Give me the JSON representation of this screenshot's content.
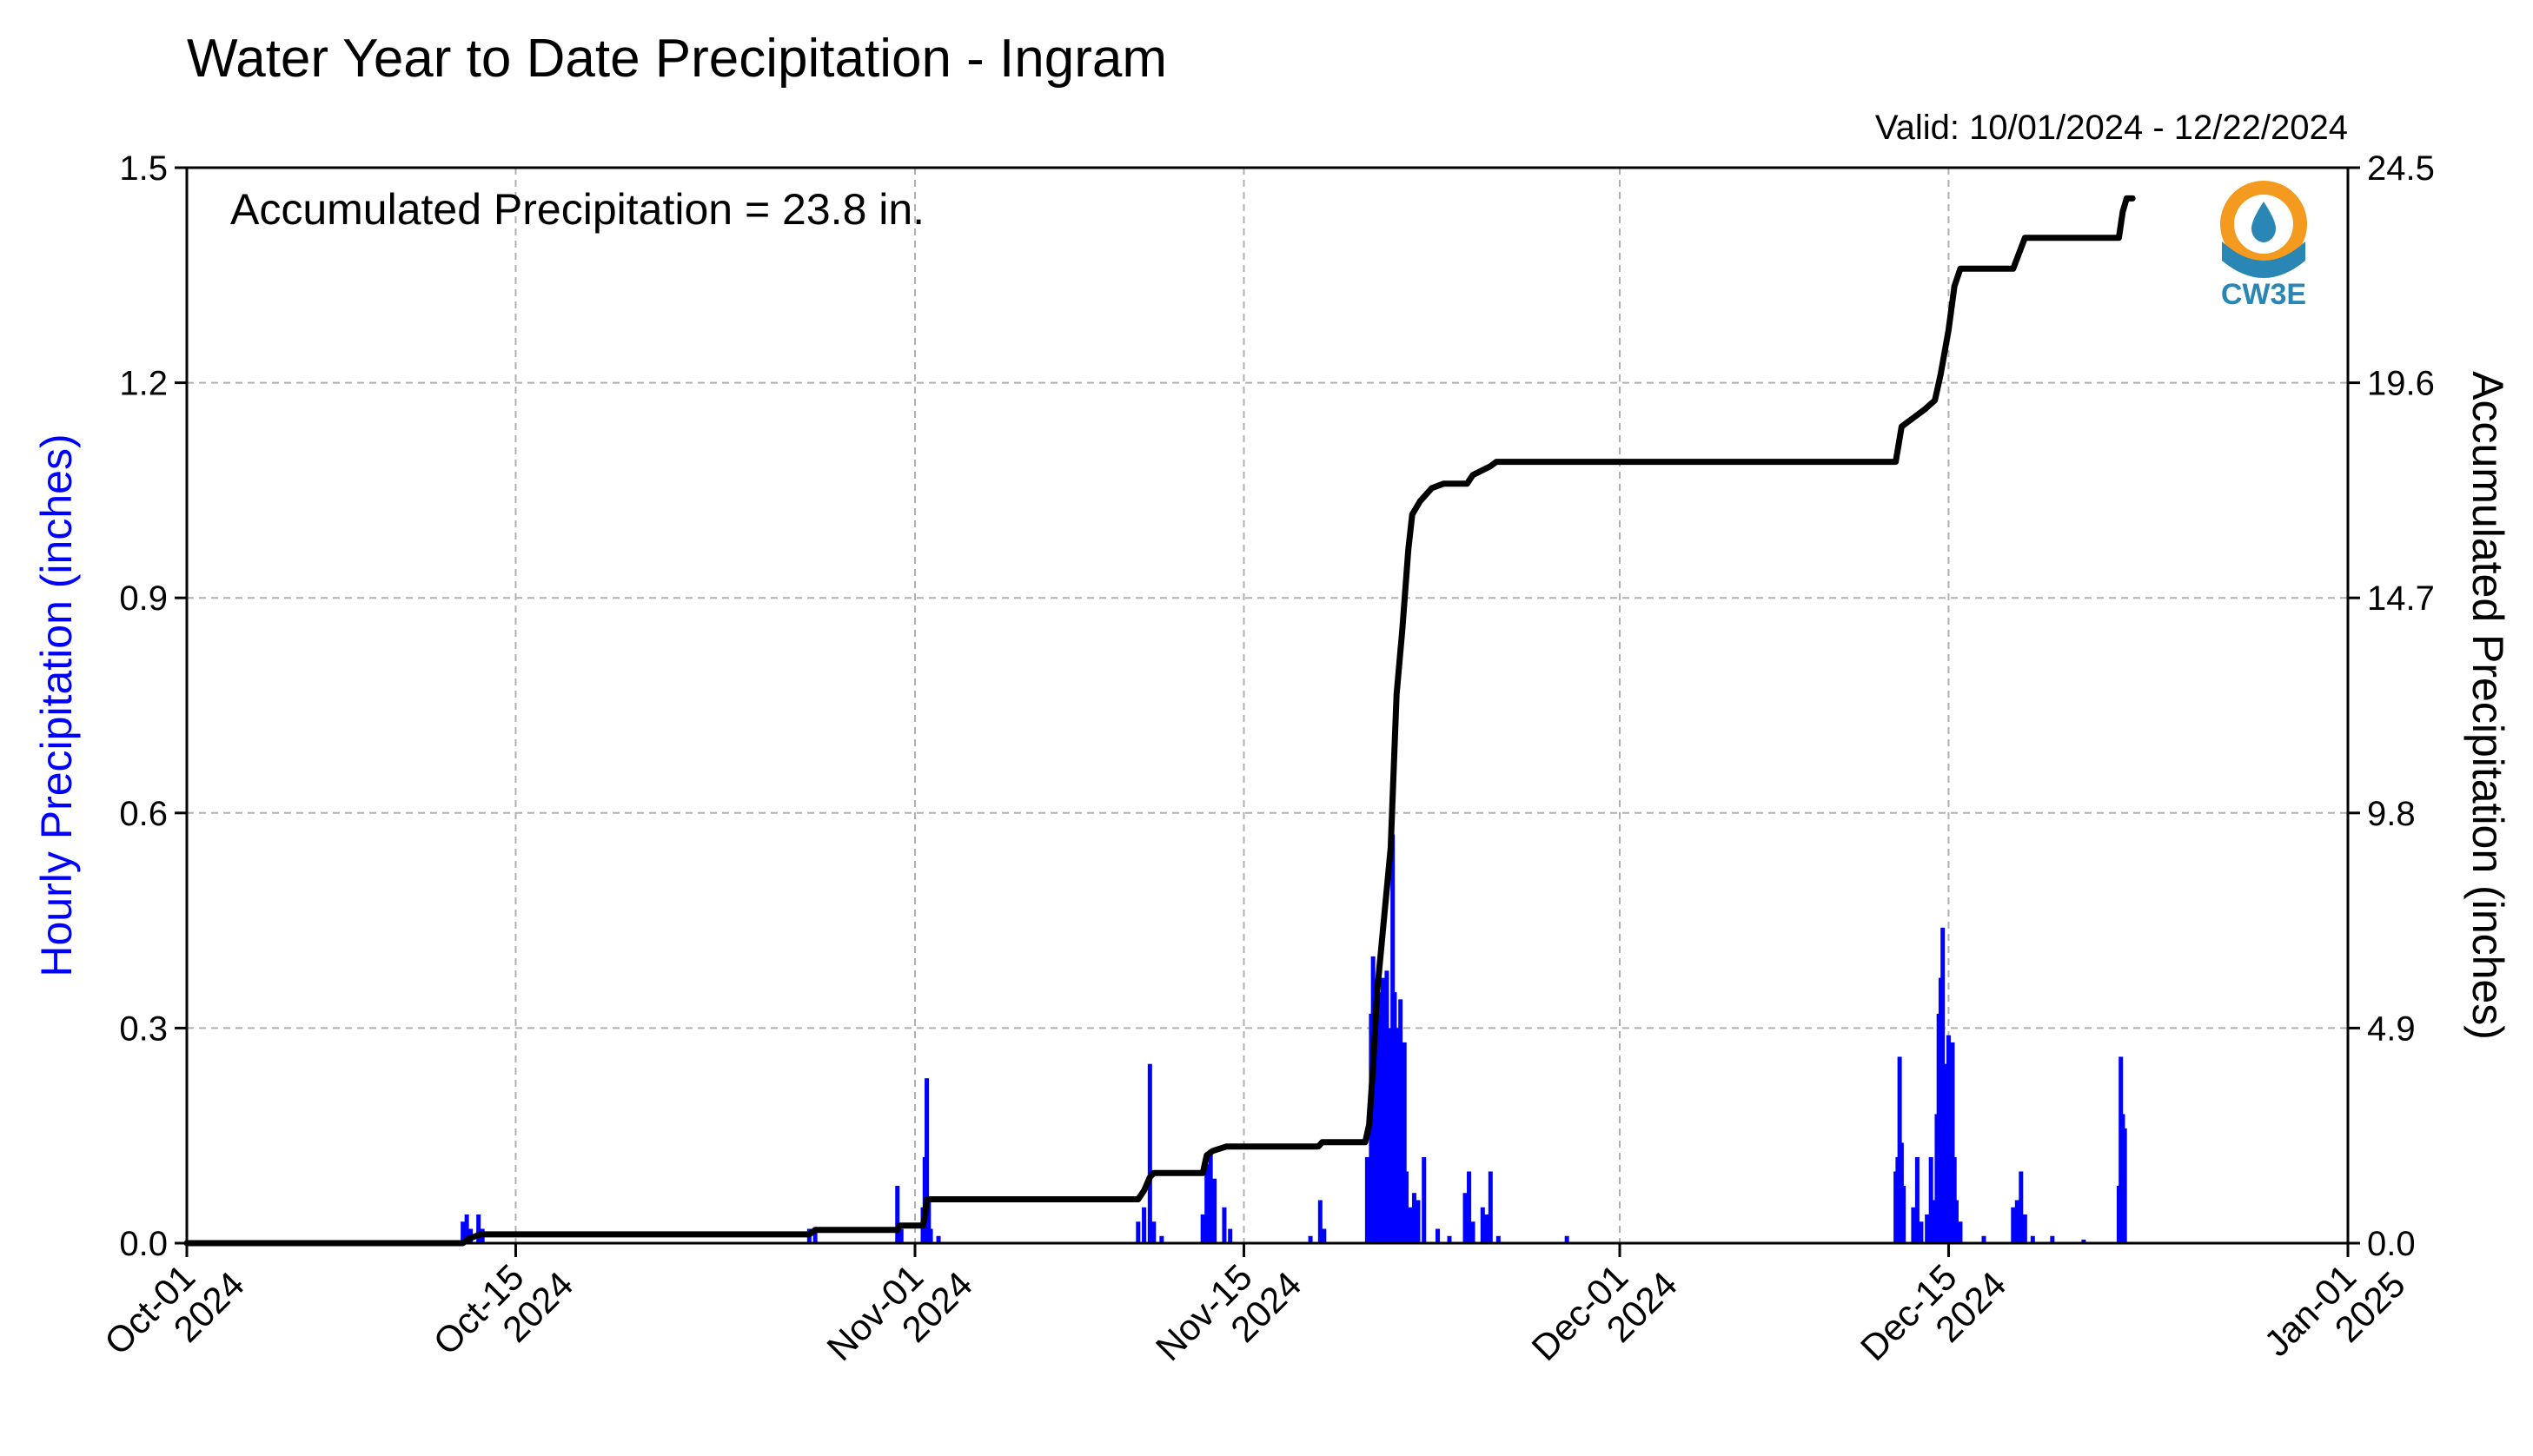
{
  "chart_data": {
    "type": "bar+line",
    "title": "Water Year to Date Precipitation - Ingram",
    "valid_text": "Valid: 10/01/2024 - 12/22/2024",
    "annotation": "Accumulated Precipitation = 23.8 in.",
    "ylabel_left": "Hourly Precipitation (inches)",
    "ylabel_right": "Accumulated Precipitation (inches)",
    "logo_text": "CW3E",
    "colors": {
      "bars": "#0000ff",
      "line": "#000000",
      "grid": "#b0b0b0",
      "logo_orange": "#f39a1f",
      "logo_blue": "#2a86b5"
    },
    "grid": true,
    "x_range": [
      "2024-10-01",
      "2025-01-01"
    ],
    "x_ticks": [
      {
        "date": "2024-10-01",
        "line1": "Oct-01",
        "line2": "2024"
      },
      {
        "date": "2024-10-15",
        "line1": "Oct-15",
        "line2": "2024"
      },
      {
        "date": "2024-11-01",
        "line1": "Nov-01",
        "line2": "2024"
      },
      {
        "date": "2024-11-15",
        "line1": "Nov-15",
        "line2": "2024"
      },
      {
        "date": "2024-12-01",
        "line1": "Dec-01",
        "line2": "2024"
      },
      {
        "date": "2024-12-15",
        "line1": "Dec-15",
        "line2": "2024"
      },
      {
        "date": "2025-01-01",
        "line1": "Jan-01",
        "line2": "2025"
      }
    ],
    "y_left": {
      "range": [
        0,
        1.5
      ],
      "ticks": [
        "0.0",
        "0.3",
        "0.6",
        "0.9",
        "1.2",
        "1.5"
      ]
    },
    "y_right": {
      "range": [
        0,
        24.5
      ],
      "ticks": [
        "0.0",
        "4.9",
        "9.8",
        "14.7",
        "19.6",
        "24.5"
      ]
    },
    "hourly_series": {
      "name": "Hourly Precipitation",
      "points": [
        [
          "2024-10-12T18:00",
          0.03
        ],
        [
          "2024-10-12T22:00",
          0.04
        ],
        [
          "2024-10-13T02:00",
          0.02
        ],
        [
          "2024-10-13T10:00",
          0.04
        ],
        [
          "2024-10-13T14:00",
          0.02
        ],
        [
          "2024-10-27T12:00",
          0.02
        ],
        [
          "2024-10-27T18:00",
          0.02
        ],
        [
          "2024-10-31T06:00",
          0.08
        ],
        [
          "2024-10-31T10:00",
          0.02
        ],
        [
          "2024-11-01T08:00",
          0.05
        ],
        [
          "2024-11-01T10:00",
          0.12
        ],
        [
          "2024-11-01T12:00",
          0.23
        ],
        [
          "2024-11-01T14:00",
          0.06
        ],
        [
          "2024-11-01T16:00",
          0.02
        ],
        [
          "2024-11-02T00:00",
          0.01
        ],
        [
          "2024-11-10T12:00",
          0.03
        ],
        [
          "2024-11-10T18:00",
          0.05
        ],
        [
          "2024-11-11T00:00",
          0.25
        ],
        [
          "2024-11-11T04:00",
          0.03
        ],
        [
          "2024-11-11T12:00",
          0.01
        ],
        [
          "2024-11-13T06:00",
          0.04
        ],
        [
          "2024-11-13T10:00",
          0.11
        ],
        [
          "2024-11-13T14:00",
          0.13
        ],
        [
          "2024-11-13T18:00",
          0.09
        ],
        [
          "2024-11-14T04:00",
          0.05
        ],
        [
          "2024-11-14T10:00",
          0.02
        ],
        [
          "2024-11-17T20:00",
          0.01
        ],
        [
          "2024-11-18T06:00",
          0.06
        ],
        [
          "2024-11-18T10:00",
          0.02
        ],
        [
          "2024-11-20T06:00",
          0.12
        ],
        [
          "2024-11-20T10:00",
          0.32
        ],
        [
          "2024-11-20T12:00",
          0.4
        ],
        [
          "2024-11-20T14:00",
          0.28
        ],
        [
          "2024-11-20T16:00",
          0.2
        ],
        [
          "2024-11-20T18:00",
          0.35
        ],
        [
          "2024-11-20T20:00",
          0.3
        ],
        [
          "2024-11-20T22:00",
          0.37
        ],
        [
          "2024-11-21T00:00",
          0.25
        ],
        [
          "2024-11-21T02:00",
          0.38
        ],
        [
          "2024-11-21T04:00",
          0.3
        ],
        [
          "2024-11-21T06:00",
          0.2
        ],
        [
          "2024-11-21T08:00",
          0.57
        ],
        [
          "2024-11-21T10:00",
          0.35
        ],
        [
          "2024-11-21T12:00",
          0.3
        ],
        [
          "2024-11-21T14:00",
          0.25
        ],
        [
          "2024-11-21T16:00",
          0.34
        ],
        [
          "2024-11-21T18:00",
          0.18
        ],
        [
          "2024-11-21T20:00",
          0.28
        ],
        [
          "2024-11-21T22:00",
          0.1
        ],
        [
          "2024-11-22T02:00",
          0.05
        ],
        [
          "2024-11-22T06:00",
          0.07
        ],
        [
          "2024-11-22T10:00",
          0.06
        ],
        [
          "2024-11-22T16:00",
          0.12
        ],
        [
          "2024-11-23T06:00",
          0.02
        ],
        [
          "2024-11-23T18:00",
          0.01
        ],
        [
          "2024-11-24T10:00",
          0.07
        ],
        [
          "2024-11-24T14:00",
          0.1
        ],
        [
          "2024-11-24T18:00",
          0.03
        ],
        [
          "2024-11-25T04:00",
          0.05
        ],
        [
          "2024-11-25T08:00",
          0.04
        ],
        [
          "2024-11-25T12:00",
          0.1
        ],
        [
          "2024-11-25T20:00",
          0.01
        ],
        [
          "2024-11-28T18:00",
          0.01
        ],
        [
          "2024-12-12T18:00",
          0.1
        ],
        [
          "2024-12-12T20:00",
          0.12
        ],
        [
          "2024-12-12T22:00",
          0.26
        ],
        [
          "2024-12-13T00:00",
          0.14
        ],
        [
          "2024-12-13T02:00",
          0.08
        ],
        [
          "2024-12-13T12:00",
          0.05
        ],
        [
          "2024-12-13T16:00",
          0.12
        ],
        [
          "2024-12-13T20:00",
          0.03
        ],
        [
          "2024-12-14T02:00",
          0.04
        ],
        [
          "2024-12-14T06:00",
          0.12
        ],
        [
          "2024-12-14T08:00",
          0.06
        ],
        [
          "2024-12-14T12:00",
          0.18
        ],
        [
          "2024-12-14T14:00",
          0.32
        ],
        [
          "2024-12-14T16:00",
          0.37
        ],
        [
          "2024-12-14T18:00",
          0.44
        ],
        [
          "2024-12-14T20:00",
          0.25
        ],
        [
          "2024-12-14T22:00",
          0.1
        ],
        [
          "2024-12-15T00:00",
          0.29
        ],
        [
          "2024-12-15T02:00",
          0.2
        ],
        [
          "2024-12-15T04:00",
          0.28
        ],
        [
          "2024-12-15T06:00",
          0.12
        ],
        [
          "2024-12-15T08:00",
          0.06
        ],
        [
          "2024-12-15T12:00",
          0.03
        ],
        [
          "2024-12-16T12:00",
          0.01
        ],
        [
          "2024-12-17T18:00",
          0.05
        ],
        [
          "2024-12-17T22:00",
          0.06
        ],
        [
          "2024-12-18T02:00",
          0.1
        ],
        [
          "2024-12-18T06:00",
          0.04
        ],
        [
          "2024-12-18T14:00",
          0.01
        ],
        [
          "2024-12-19T10:00",
          0.01
        ],
        [
          "2024-12-20T18:00",
          0.005
        ],
        [
          "2024-12-22T06:00",
          0.08
        ],
        [
          "2024-12-22T08:00",
          0.26
        ],
        [
          "2024-12-22T10:00",
          0.18
        ],
        [
          "2024-12-22T12:00",
          0.16
        ]
      ]
    },
    "accumulated_series": {
      "name": "Accumulated Precipitation",
      "points": [
        [
          "2024-10-01T00:00",
          0.0
        ],
        [
          "2024-10-12T18:00",
          0.0
        ],
        [
          "2024-10-13T00:00",
          0.1
        ],
        [
          "2024-10-13T12:00",
          0.2
        ],
        [
          "2024-10-27T12:00",
          0.2
        ],
        [
          "2024-10-27T18:00",
          0.3
        ],
        [
          "2024-10-31T06:00",
          0.3
        ],
        [
          "2024-10-31T08:00",
          0.4
        ],
        [
          "2024-11-01T08:00",
          0.4
        ],
        [
          "2024-11-01T10:00",
          0.6
        ],
        [
          "2024-11-01T12:00",
          1.0
        ],
        [
          "2024-11-10T12:00",
          1.0
        ],
        [
          "2024-11-10T18:00",
          1.2
        ],
        [
          "2024-11-11T00:00",
          1.5
        ],
        [
          "2024-11-11T04:00",
          1.6
        ],
        [
          "2024-11-13T06:00",
          1.6
        ],
        [
          "2024-11-13T10:00",
          2.0
        ],
        [
          "2024-11-13T16:00",
          2.1
        ],
        [
          "2024-11-14T06:00",
          2.2
        ],
        [
          "2024-11-18T04:00",
          2.2
        ],
        [
          "2024-11-18T08:00",
          2.3
        ],
        [
          "2024-11-20T04:00",
          2.3
        ],
        [
          "2024-11-20T08:00",
          2.7
        ],
        [
          "2024-11-20T12:00",
          4.0
        ],
        [
          "2024-11-20T16:00",
          5.7
        ],
        [
          "2024-11-21T00:00",
          7.6
        ],
        [
          "2024-11-21T06:00",
          9.0
        ],
        [
          "2024-11-21T12:00",
          12.5
        ],
        [
          "2024-11-21T18:00",
          14.0
        ],
        [
          "2024-11-22T00:00",
          15.8
        ],
        [
          "2024-11-22T04:00",
          16.6
        ],
        [
          "2024-11-22T12:00",
          16.9
        ],
        [
          "2024-11-23T00:00",
          17.2
        ],
        [
          "2024-11-23T12:00",
          17.3
        ],
        [
          "2024-11-24T12:00",
          17.3
        ],
        [
          "2024-11-24T18:00",
          17.5
        ],
        [
          "2024-11-25T12:00",
          17.7
        ],
        [
          "2024-11-25T18:00",
          17.8
        ],
        [
          "2024-12-12T18:00",
          17.8
        ],
        [
          "2024-12-13T00:00",
          18.6
        ],
        [
          "2024-12-13T12:00",
          18.8
        ],
        [
          "2024-12-14T00:00",
          19.0
        ],
        [
          "2024-12-14T10:00",
          19.2
        ],
        [
          "2024-12-14T16:00",
          19.8
        ],
        [
          "2024-12-15T00:00",
          20.8
        ],
        [
          "2024-12-15T06:00",
          21.8
        ],
        [
          "2024-12-15T12:00",
          22.2
        ],
        [
          "2024-12-17T18:00",
          22.2
        ],
        [
          "2024-12-18T06:00",
          22.9
        ],
        [
          "2024-12-22T06:00",
          22.9
        ],
        [
          "2024-12-22T10:00",
          23.5
        ],
        [
          "2024-12-22T14:00",
          23.8
        ],
        [
          "2024-12-22T20:00",
          23.8
        ]
      ]
    }
  }
}
